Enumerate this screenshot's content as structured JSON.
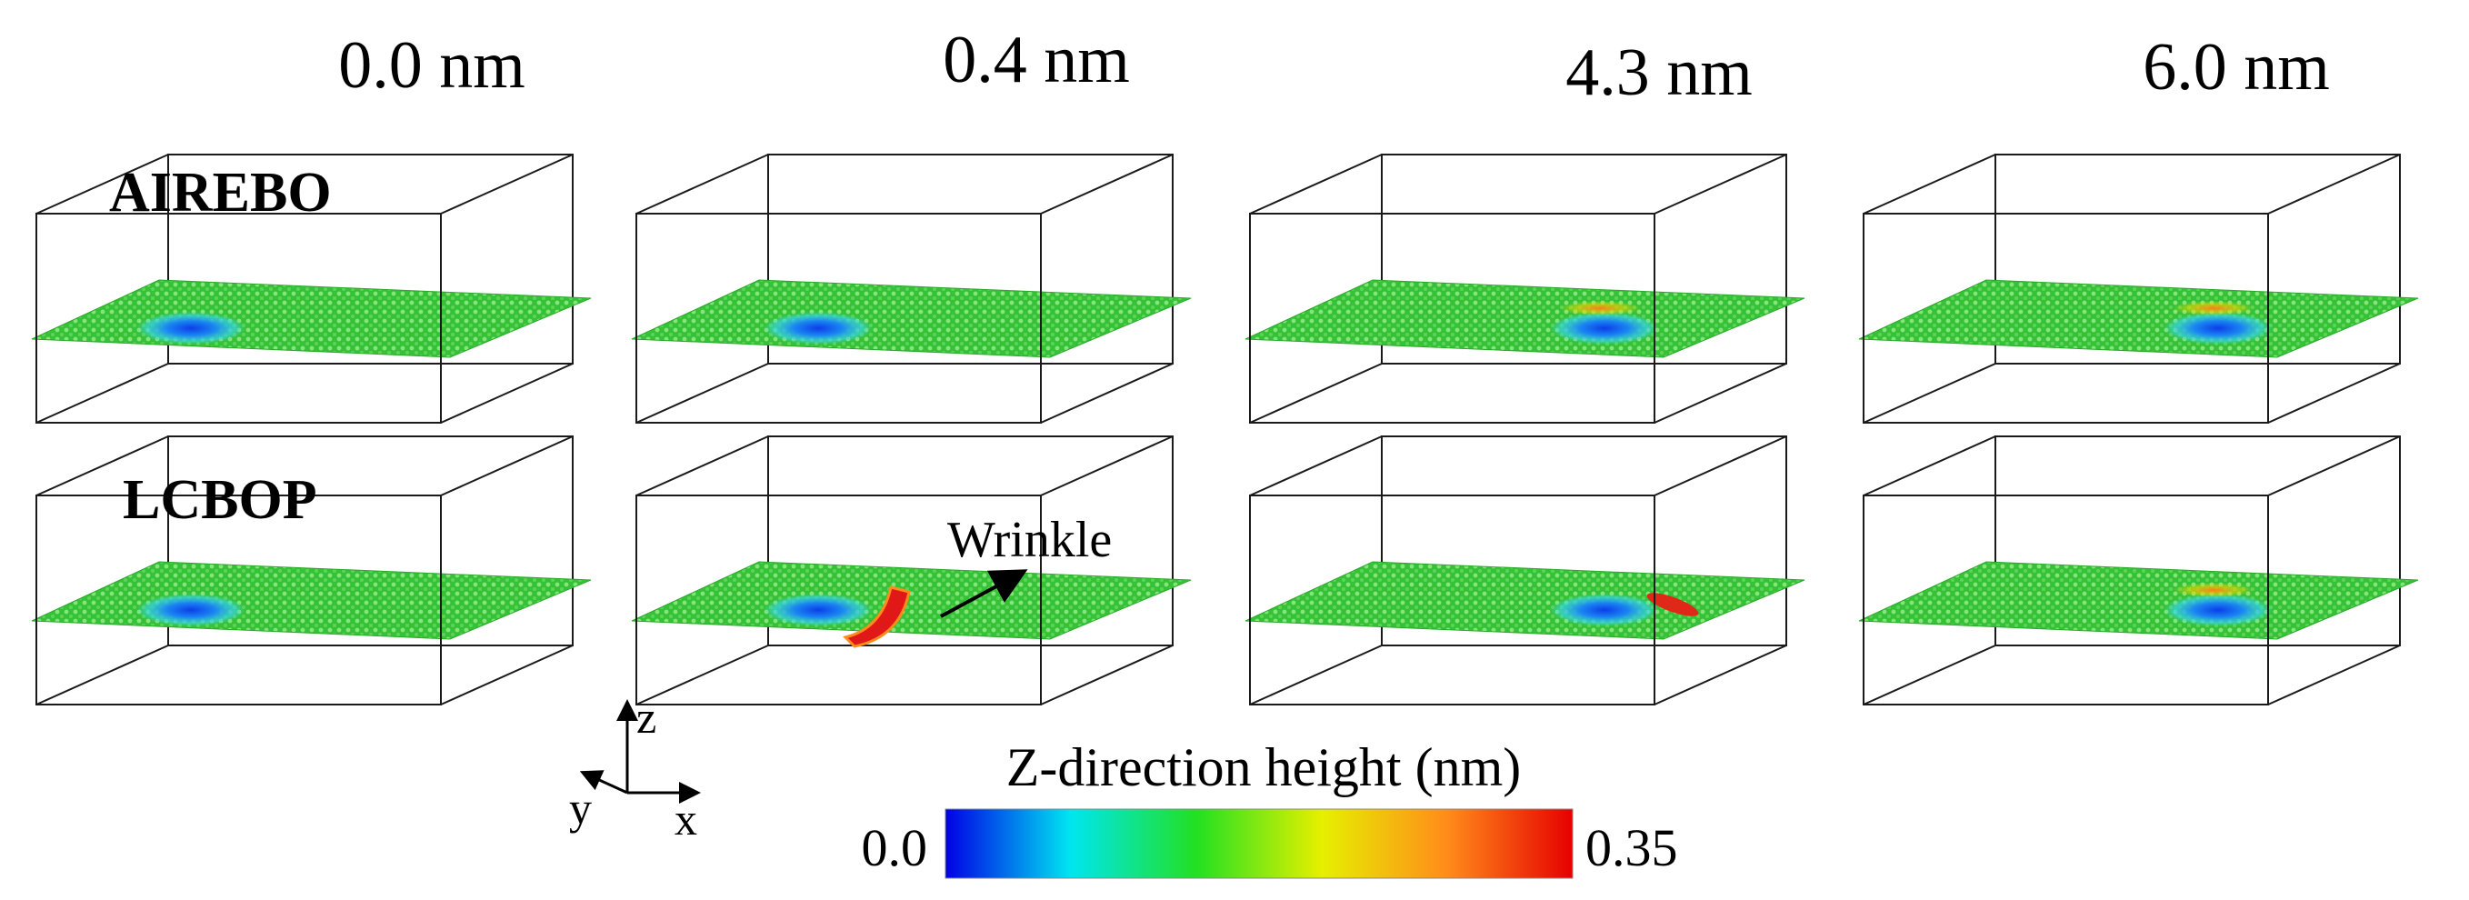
{
  "columns": [
    {
      "label": "0.0 nm"
    },
    {
      "label": "0.4 nm"
    },
    {
      "label": "4.3 nm"
    },
    {
      "label": "6.0 nm"
    }
  ],
  "rows": [
    {
      "label": "AIREBO"
    },
    {
      "label": "LCBOP"
    }
  ],
  "panels": [
    {
      "row": 0,
      "col": 0,
      "dip": "blue",
      "hotspot": "none"
    },
    {
      "row": 0,
      "col": 1,
      "dip": "blue",
      "hotspot": "none"
    },
    {
      "row": 0,
      "col": 2,
      "dip": "blue",
      "hotspot": "faint-orange"
    },
    {
      "row": 0,
      "col": 3,
      "dip": "blue",
      "hotspot": "faint-orange"
    },
    {
      "row": 1,
      "col": 0,
      "dip": "blue",
      "hotspot": "none"
    },
    {
      "row": 1,
      "col": 1,
      "dip": "blue",
      "hotspot": "red-wrinkle"
    },
    {
      "row": 1,
      "col": 2,
      "dip": "blue",
      "hotspot": "red-streak"
    },
    {
      "row": 1,
      "col": 3,
      "dip": "blue",
      "hotspot": "faint-orange"
    }
  ],
  "annotation": {
    "label": "Wrinkle"
  },
  "axes": {
    "z": "z",
    "y": "y",
    "x": "x"
  },
  "colorbar": {
    "title": "Z-direction height (nm)",
    "min_label": "0.0",
    "max_label": "0.35",
    "min": 0.0,
    "max": 0.35,
    "stops": [
      "#0000e6",
      "#00e6f0",
      "#22e022",
      "#e6f000",
      "#ff8c1a",
      "#e60000"
    ]
  },
  "colors": {
    "sheet_green": "#3ec83e",
    "sheet_light": "#7fe07a",
    "dip_blue": "#1060f0",
    "dip_cyan": "#30d0e8",
    "wrinkle_red": "#e01818",
    "edge": "#1a1a1a"
  }
}
